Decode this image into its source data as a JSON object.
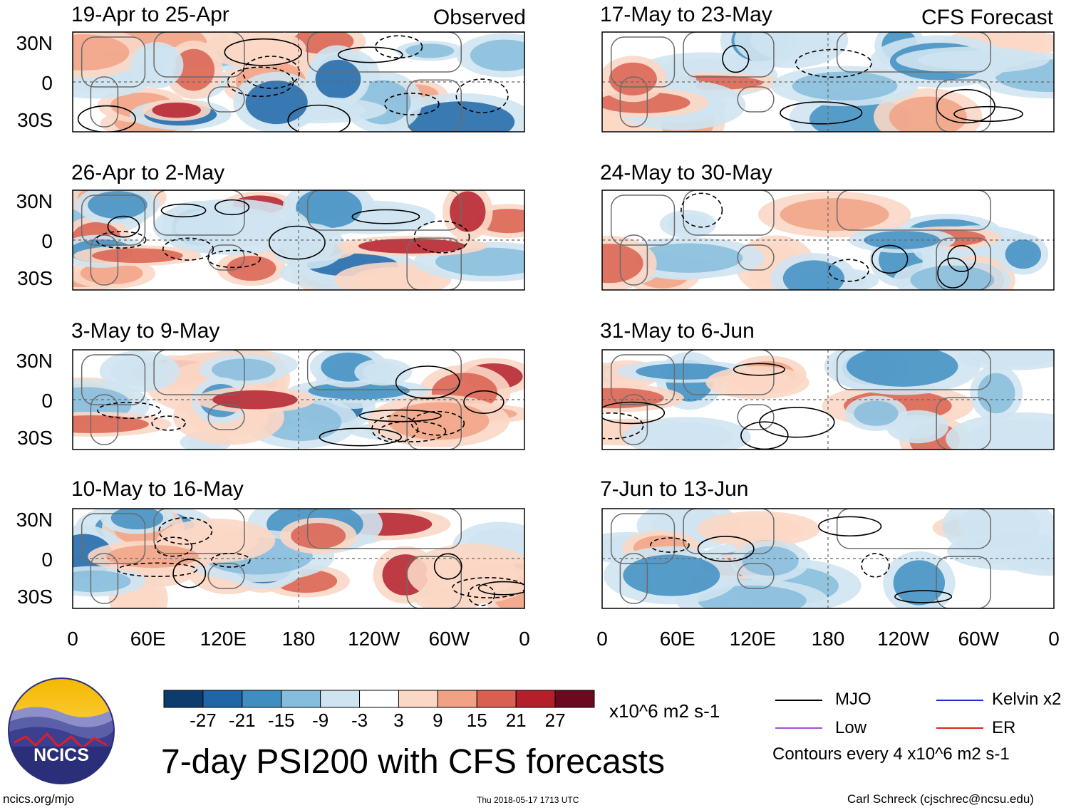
{
  "header": {
    "observed_label": "Observed",
    "forecast_label": "CFS Forecast"
  },
  "observed_panels": [
    {
      "title": "19-Apr to 25-Apr"
    },
    {
      "title": "26-Apr to 2-May"
    },
    {
      "title": "3-May to 9-May"
    },
    {
      "title": "10-May to 16-May"
    }
  ],
  "forecast_panels": [
    {
      "title": "17-May to 23-May"
    },
    {
      "title": "24-May to 30-May"
    },
    {
      "title": "31-May to 6-Jun"
    },
    {
      "title": "7-Jun to 13-Jun"
    }
  ],
  "lat_labels": [
    "30N",
    "0",
    "30S"
  ],
  "lon_labels": [
    "0",
    "60E",
    "120E",
    "180",
    "120W",
    "60W",
    "0"
  ],
  "colorbar": {
    "colors": [
      "#0d3b6e",
      "#1f66a8",
      "#3f8ec2",
      "#86bcdc",
      "#cfe4f1",
      "#ffffff",
      "#fbd7c5",
      "#f1a285",
      "#d96050",
      "#b41f2c",
      "#6b0a1e"
    ],
    "tick_labels": [
      "-27",
      "-21",
      "-15",
      "-9",
      "-3",
      "3",
      "9",
      "15",
      "21",
      "27"
    ],
    "units": "x10^6 m2 s-1"
  },
  "legend": {
    "mjo": "MJO",
    "kelvin": "Kelvin x2",
    "low": "Low",
    "er": "ER",
    "mjo_color": "#000000",
    "kelvin_color": "#1f2fd6",
    "low_color": "#a64fe0",
    "er_color": "#e0201e",
    "contours_note": "Contours every 4 x10^6 m2 s-1"
  },
  "main_title": "7-day PSI200 with CFS forecasts",
  "logo_text": "NCICS",
  "footer": {
    "url": "ncics.org/mjo",
    "timestamp": "Thu 2018-05-17 1713 UTC",
    "author": "Carl Schreck (cjschrec@ncsu.edu)"
  }
}
